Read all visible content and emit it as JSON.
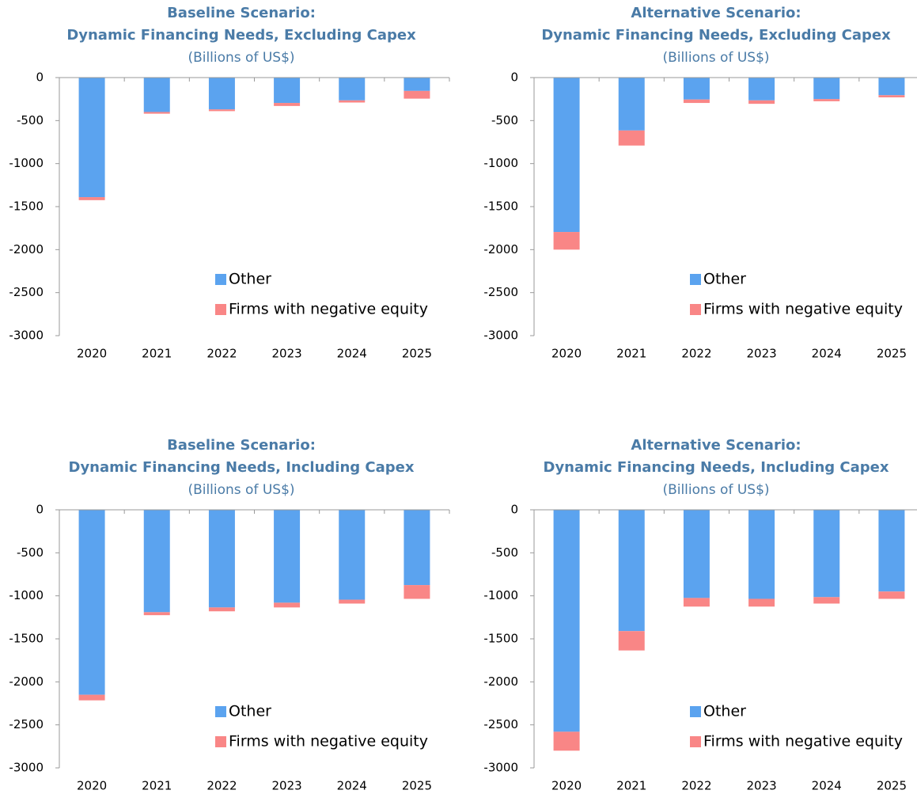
{
  "chart_data": [
    {
      "type": "bar",
      "stacked": true,
      "title": [
        "Baseline Scenario:",
        "Dynamic Financing Needs, Excluding Capex"
      ],
      "subtitle": "(Billions of US$)",
      "categories": [
        "2020",
        "2021",
        "2022",
        "2023",
        "2024",
        "2025"
      ],
      "series": [
        {
          "name": "Other",
          "color": "#5ba3ef",
          "values": [
            -1390,
            -400,
            -370,
            -295,
            -265,
            -155
          ]
        },
        {
          "name": "Firms with negative equity",
          "color": "#f98686",
          "values": [
            -35,
            -20,
            -20,
            -35,
            -25,
            -90
          ]
        }
      ],
      "ylim": [
        -3000,
        0
      ],
      "yticks": [
        0,
        -500,
        -1000,
        -1500,
        -2000,
        -2500,
        -3000
      ]
    },
    {
      "type": "bar",
      "stacked": true,
      "title": [
        "Alternative Scenario:",
        "Dynamic Financing Needs, Excluding Capex"
      ],
      "subtitle": "(Billions of US$)",
      "categories": [
        "2020",
        "2021",
        "2022",
        "2023",
        "2024",
        "2025"
      ],
      "series": [
        {
          "name": "Other",
          "color": "#5ba3ef",
          "values": [
            -1795,
            -615,
            -255,
            -265,
            -250,
            -205
          ]
        },
        {
          "name": "Firms with negative equity",
          "color": "#f98686",
          "values": [
            -205,
            -175,
            -40,
            -40,
            -25,
            -25
          ]
        }
      ],
      "ylim": [
        -3000,
        0
      ],
      "yticks": [
        0,
        -500,
        -1000,
        -1500,
        -2000,
        -2500,
        -3000
      ]
    },
    {
      "type": "bar",
      "stacked": true,
      "title": [
        "Baseline Scenario:",
        "Dynamic Financing Needs, Including Capex"
      ],
      "subtitle": "(Billions of US$)",
      "categories": [
        "2020",
        "2021",
        "2022",
        "2023",
        "2024",
        "2025"
      ],
      "series": [
        {
          "name": "Other",
          "color": "#5ba3ef",
          "values": [
            -2150,
            -1190,
            -1135,
            -1080,
            -1045,
            -875
          ]
        },
        {
          "name": "Firms with negative equity",
          "color": "#f98686",
          "values": [
            -65,
            -35,
            -45,
            -55,
            -45,
            -160
          ]
        }
      ],
      "ylim": [
        -3000,
        0
      ],
      "yticks": [
        0,
        -500,
        -1000,
        -1500,
        -2000,
        -2500,
        -3000
      ]
    },
    {
      "type": "bar",
      "stacked": true,
      "title": [
        "Alternative Scenario:",
        "Dynamic Financing Needs, Including Capex"
      ],
      "subtitle": "(Billions of US$)",
      "categories": [
        "2020",
        "2021",
        "2022",
        "2023",
        "2024",
        "2025"
      ],
      "series": [
        {
          "name": "Other",
          "color": "#5ba3ef",
          "values": [
            -2580,
            -1410,
            -1025,
            -1035,
            -1015,
            -950
          ]
        },
        {
          "name": "Firms with negative equity",
          "color": "#f98686",
          "values": [
            -220,
            -225,
            -100,
            -90,
            -75,
            -85
          ]
        }
      ],
      "ylim": [
        -3000,
        0
      ],
      "yticks": [
        0,
        -500,
        -1000,
        -1500,
        -2000,
        -2500,
        -3000
      ]
    }
  ]
}
